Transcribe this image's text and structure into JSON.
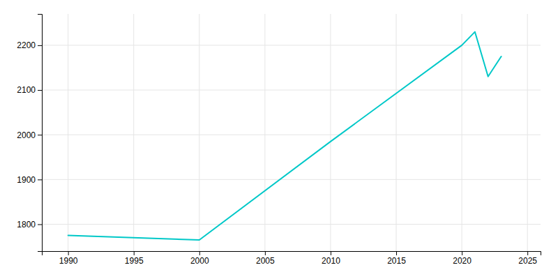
{
  "chart_data": {
    "type": "line",
    "x": [
      1990,
      2000,
      2010,
      2020,
      2021,
      2022,
      2023
    ],
    "values": [
      1775,
      1765,
      1985,
      2200,
      2230,
      2130,
      2175
    ],
    "color": "#00C8C8",
    "xlim": [
      1988,
      2026
    ],
    "ylim": [
      1740,
      2270
    ],
    "xticks": [
      1990,
      1995,
      2000,
      2005,
      2010,
      2015,
      2020,
      2025
    ],
    "yticks": [
      1800,
      1900,
      2000,
      2100,
      2200
    ],
    "grid": true
  }
}
